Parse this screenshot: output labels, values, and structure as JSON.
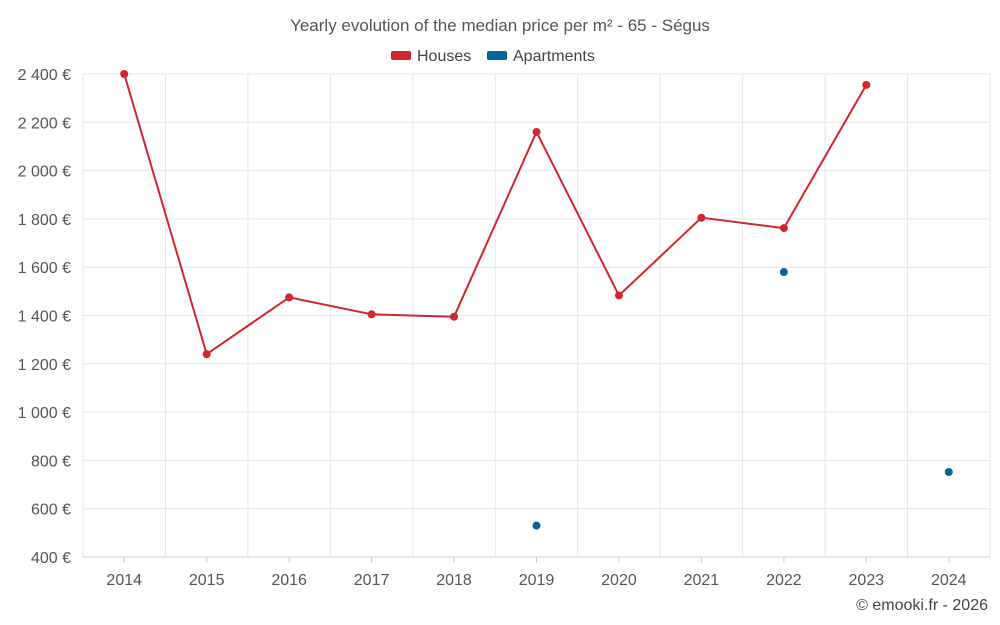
{
  "chart_data": {
    "type": "line",
    "title": "Yearly evolution of the median price per m² - 65 - Ségus",
    "categories": [
      "2014",
      "2015",
      "2016",
      "2017",
      "2018",
      "2019",
      "2020",
      "2021",
      "2022",
      "2023",
      "2024"
    ],
    "series": [
      {
        "name": "Houses",
        "color": "#d0262d",
        "values": [
          2400,
          1240,
          1475,
          1405,
          1395,
          2160,
          1483,
          1805,
          1762,
          2355,
          null
        ]
      },
      {
        "name": "Apartments",
        "color": "#006699",
        "values": [
          null,
          null,
          null,
          null,
          null,
          530,
          null,
          null,
          1580,
          null,
          752
        ]
      }
    ],
    "ylim": [
      400,
      2400
    ],
    "yticks": [
      400,
      600,
      800,
      1000,
      1200,
      1400,
      1600,
      1800,
      2000,
      2200,
      2400
    ],
    "ytick_labels": [
      "400 €",
      "600 €",
      "800 €",
      "1 000 €",
      "1 200 €",
      "1 400 €",
      "1 600 €",
      "1 800 €",
      "2 000 €",
      "2 200 €",
      "2 400 €"
    ],
    "legend_position": "top-center",
    "grid": true,
    "credit": "© emooki.fr - 2026"
  }
}
